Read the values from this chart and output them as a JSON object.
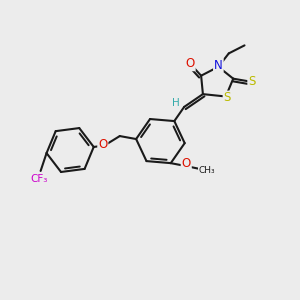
{
  "bg_color": "#ececec",
  "bond_color": "#1a1a1a",
  "atom_colors": {
    "O": "#dd1100",
    "N": "#1111dd",
    "S": "#bbbb00",
    "F": "#cc00cc",
    "H": "#33aaaa",
    "C": "#1a1a1a"
  },
  "font_size": 7.0,
  "bond_lw": 1.5
}
